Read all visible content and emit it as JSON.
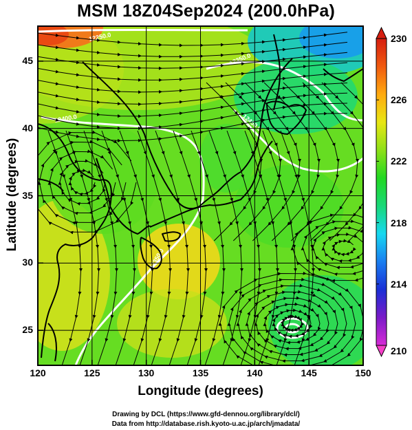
{
  "title": "MSM 18Z04Sep2024 (200.0hPa)",
  "chart_data": {
    "type": "heatmap",
    "title": "MSM 18Z04Sep2024 (200.0hPa)",
    "xlabel": "Longitude (degrees)",
    "ylabel": "Latitude  (degrees)",
    "xlim": [
      120,
      150
    ],
    "ylim": [
      22.4,
      47.6
    ],
    "x_ticks": [
      "120",
      "125",
      "130",
      "135",
      "140",
      "145",
      "150"
    ],
    "y_ticks": [
      "25",
      "30",
      "35",
      "40",
      "45"
    ],
    "grid": true,
    "colorbar": {
      "min": 210,
      "max": 230,
      "tick_labels": [
        "230",
        "226",
        "222",
        "218",
        "214",
        "210"
      ],
      "colors": [
        "#d62bd6",
        "#7a1ac8",
        "#1a2fd6",
        "#1a7ef0",
        "#17d8f0",
        "#19d878",
        "#22d822",
        "#8ee018",
        "#e8e614",
        "#ffaa10",
        "#f05a10",
        "#d61e10"
      ]
    },
    "contour_labels": [
      "12250.0",
      "12350.0",
      "12400.0",
      "12450.0",
      "12350.0"
    ]
  },
  "credits": {
    "line1": "Drawing by DCL (https://www.gfd-dennou.org/library/dcl/)",
    "line2": "Data from http://database.rish.kyoto-u.ac.jp/arch/jmadata/"
  }
}
